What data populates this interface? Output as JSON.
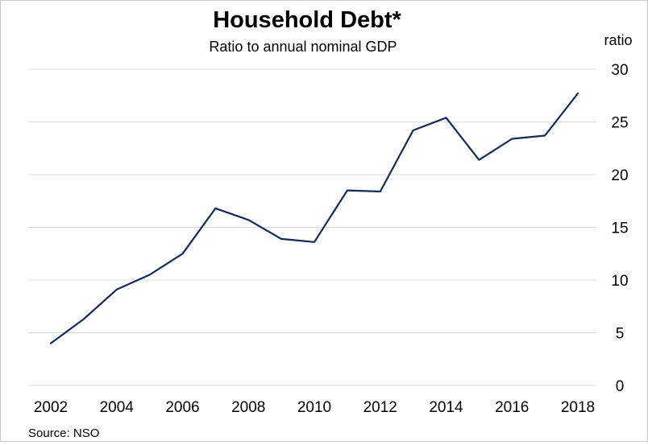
{
  "chart_data": {
    "type": "line",
    "title": "Household Debt*",
    "subtitle": "Ratio to annual nominal GDP",
    "ylabel": "ratio",
    "xlabel": "",
    "source": "Source: NSO",
    "ylim": [
      0,
      30
    ],
    "xlim": [
      2002,
      2018
    ],
    "y_ticks": [
      0,
      5,
      10,
      15,
      20,
      25,
      30
    ],
    "x_ticks": [
      2002,
      2004,
      2006,
      2008,
      2010,
      2012,
      2014,
      2016,
      2018
    ],
    "grid": true,
    "y_axis_side": "right",
    "legend": "none",
    "line_color": "#132a5c",
    "series": [
      {
        "x": [
          2002,
          2003,
          2004,
          2005,
          2006,
          2007,
          2008,
          2009,
          2010,
          2011,
          2012,
          2013,
          2014,
          2015,
          2016,
          2017,
          2018
        ],
        "values": [
          4.0,
          6.3,
          9.1,
          10.5,
          12.5,
          16.8,
          15.7,
          13.9,
          13.6,
          18.5,
          18.4,
          24.2,
          25.4,
          21.4,
          23.4,
          23.7,
          27.7
        ]
      }
    ]
  }
}
